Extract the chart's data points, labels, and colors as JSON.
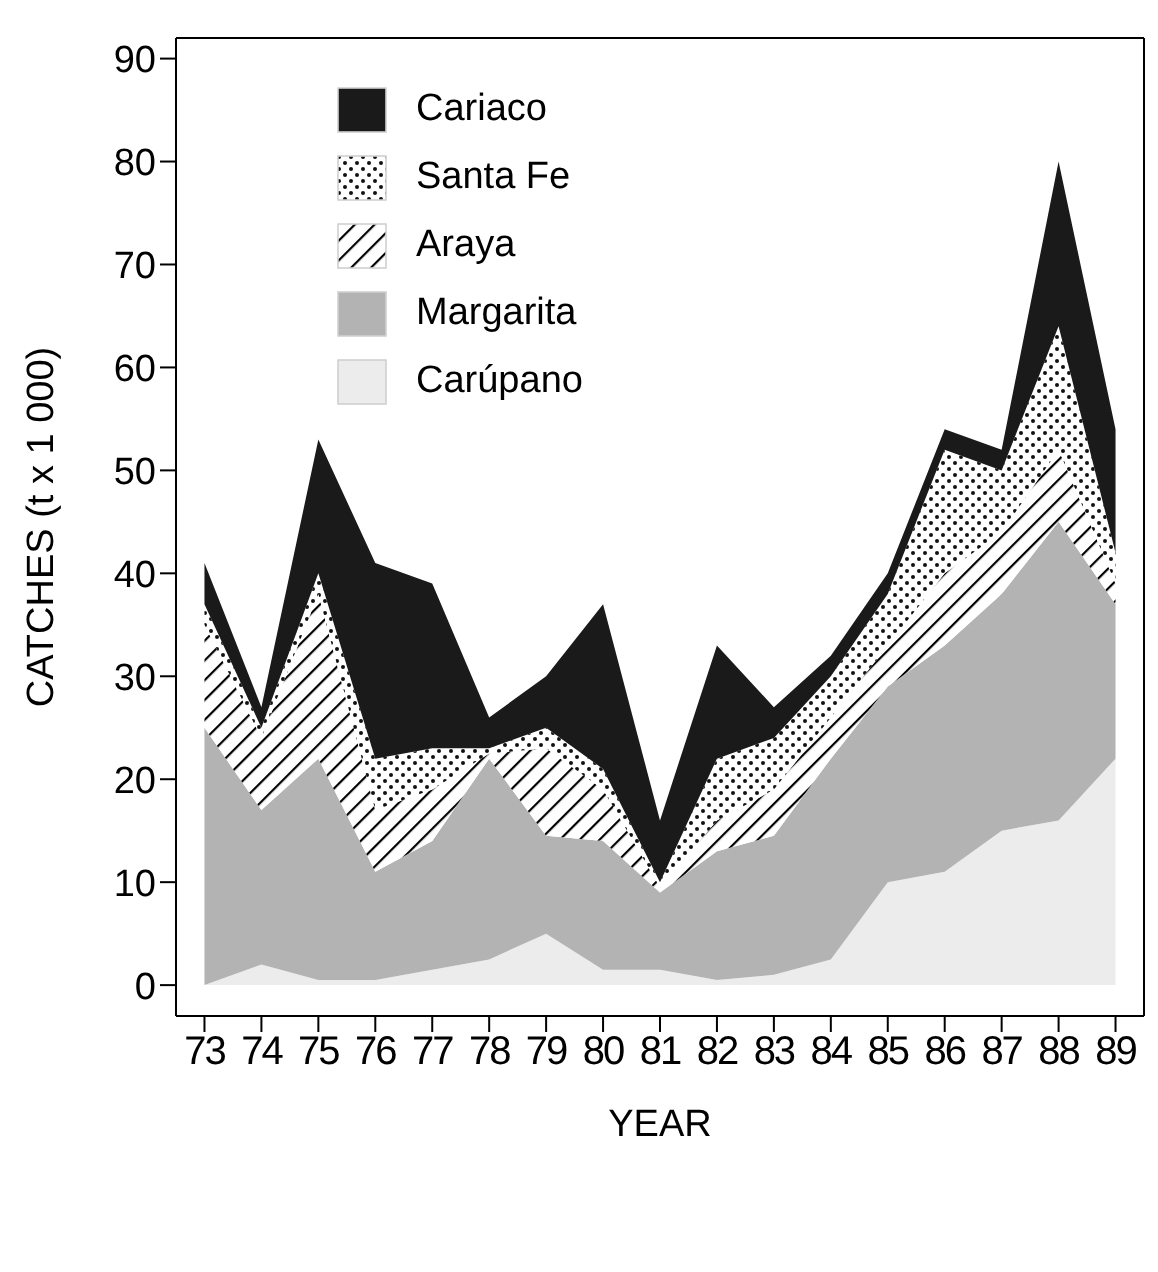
{
  "chart_data": {
    "type": "area",
    "stacked": true,
    "xlabel": "YEAR",
    "ylabel": "CATCHES (t x 1 000)",
    "categories": [
      "73",
      "74",
      "75",
      "76",
      "77",
      "78",
      "79",
      "80",
      "81",
      "82",
      "83",
      "84",
      "85",
      "86",
      "87",
      "88",
      "89"
    ],
    "series": [
      {
        "name": "Carúpano",
        "color": "#ececec",
        "values": [
          0,
          2,
          0.5,
          0.5,
          1.5,
          2.5,
          5,
          1.5,
          1.5,
          0.5,
          1,
          2.5,
          10,
          11,
          15,
          16,
          22
        ]
      },
      {
        "name": "Margarita",
        "color": "#b3b3b3",
        "values": [
          25,
          15,
          21.5,
          10.5,
          12.5,
          19.5,
          9.5,
          12.5,
          7.5,
          12.5,
          13.5,
          19.5,
          19,
          22,
          23,
          29,
          15
        ]
      },
      {
        "name": "Araya",
        "color": "#000000",
        "values": [
          10,
          7,
          16,
          6,
          5,
          0.5,
          8.5,
          5,
          0.5,
          3,
          4.5,
          4,
          4,
          7,
          6,
          7,
          2
        ]
      },
      {
        "name": "Santa Fe",
        "color": "#111111",
        "values": [
          2,
          1,
          2,
          5,
          4,
          0.5,
          2,
          2,
          0.5,
          6,
          5,
          4,
          5,
          12,
          6,
          12,
          3
        ]
      },
      {
        "name": "Cariaco",
        "color": "#1a1a1a",
        "values": [
          4,
          2,
          13,
          19,
          16,
          3,
          5,
          16,
          6,
          11,
          3,
          2,
          2,
          2,
          2,
          16,
          12
        ]
      }
    ],
    "ylim": [
      -3,
      92
    ],
    "yticks": [
      0,
      10,
      20,
      30,
      40,
      50,
      60,
      70,
      80,
      90
    ],
    "legend": "top left"
  }
}
